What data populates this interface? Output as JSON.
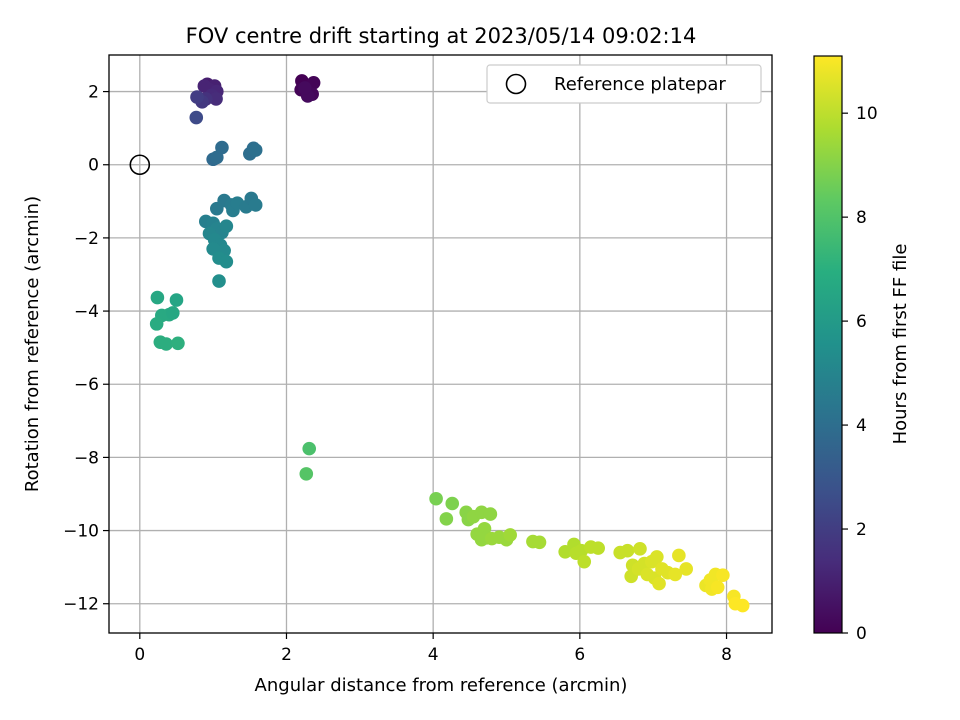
{
  "chart_data": {
    "type": "scatter",
    "title": "FOV centre drift starting at 2023/05/14 09:02:14",
    "xlabel": "Angular distance from reference (arcmin)",
    "ylabel": "Rotation from reference (arcmin)",
    "xlim": [
      -0.42,
      8.62
    ],
    "ylim": [
      -12.8,
      3.0
    ],
    "xticks": [
      0,
      2,
      4,
      6,
      8
    ],
    "yticks": [
      2,
      0,
      -2,
      -4,
      -6,
      -8,
      -10,
      -12
    ],
    "grid": true,
    "legend": {
      "position": "top-right",
      "entries": [
        "Reference platepar"
      ]
    },
    "reference_point": {
      "x": 0,
      "y": 0
    },
    "colorbar": {
      "label": "Hours from first FF file",
      "colormap": "viridis",
      "range": [
        0,
        11.1
      ],
      "ticks": [
        0,
        2,
        4,
        6,
        8,
        10
      ]
    },
    "points": [
      {
        "x": 2.21,
        "y": 2.29,
        "c": 0.0
      },
      {
        "x": 2.37,
        "y": 2.24,
        "c": 0.1
      },
      {
        "x": 2.2,
        "y": 2.05,
        "c": 0.1
      },
      {
        "x": 2.28,
        "y": 2.0,
        "c": 0.2
      },
      {
        "x": 2.35,
        "y": 1.93,
        "c": 0.2
      },
      {
        "x": 2.29,
        "y": 1.88,
        "c": 0.3
      },
      {
        "x": 2.25,
        "y": 2.1,
        "c": 0.3
      },
      {
        "x": 0.92,
        "y": 2.2,
        "c": 0.9
      },
      {
        "x": 1.02,
        "y": 2.15,
        "c": 1.0
      },
      {
        "x": 0.88,
        "y": 2.15,
        "c": 1.1
      },
      {
        "x": 0.95,
        "y": 2.05,
        "c": 1.1
      },
      {
        "x": 1.05,
        "y": 2.0,
        "c": 1.2
      },
      {
        "x": 0.98,
        "y": 1.9,
        "c": 1.3
      },
      {
        "x": 1.04,
        "y": 1.8,
        "c": 1.4
      },
      {
        "x": 0.9,
        "y": 1.8,
        "c": 1.6
      },
      {
        "x": 0.85,
        "y": 1.72,
        "c": 1.8
      },
      {
        "x": 0.78,
        "y": 1.85,
        "c": 2.0
      },
      {
        "x": 0.77,
        "y": 1.29,
        "c": 2.5
      },
      {
        "x": 1.0,
        "y": 0.15,
        "c": 3.8
      },
      {
        "x": 1.05,
        "y": 0.2,
        "c": 3.9
      },
      {
        "x": 1.12,
        "y": 0.47,
        "c": 3.9
      },
      {
        "x": 1.5,
        "y": 0.3,
        "c": 4.0
      },
      {
        "x": 1.55,
        "y": 0.45,
        "c": 4.0
      },
      {
        "x": 1.58,
        "y": 0.4,
        "c": 4.1
      },
      {
        "x": 1.05,
        "y": -1.2,
        "c": 4.5
      },
      {
        "x": 1.15,
        "y": -0.98,
        "c": 4.5
      },
      {
        "x": 1.25,
        "y": -1.1,
        "c": 4.6
      },
      {
        "x": 1.27,
        "y": -1.25,
        "c": 4.7
      },
      {
        "x": 1.33,
        "y": -1.05,
        "c": 4.7
      },
      {
        "x": 1.45,
        "y": -1.15,
        "c": 4.6
      },
      {
        "x": 1.52,
        "y": -0.92,
        "c": 4.5
      },
      {
        "x": 1.58,
        "y": -1.1,
        "c": 4.6
      },
      {
        "x": 0.9,
        "y": -1.55,
        "c": 4.8
      },
      {
        "x": 1.0,
        "y": -1.6,
        "c": 4.9
      },
      {
        "x": 1.05,
        "y": -1.75,
        "c": 5.0
      },
      {
        "x": 1.12,
        "y": -1.85,
        "c": 5.0
      },
      {
        "x": 1.18,
        "y": -1.68,
        "c": 5.1
      },
      {
        "x": 0.95,
        "y": -1.88,
        "c": 5.1
      },
      {
        "x": 1.02,
        "y": -2.05,
        "c": 5.2
      },
      {
        "x": 1.1,
        "y": -2.2,
        "c": 5.2
      },
      {
        "x": 1.15,
        "y": -2.35,
        "c": 5.3
      },
      {
        "x": 1.0,
        "y": -2.3,
        "c": 5.3
      },
      {
        "x": 1.08,
        "y": -2.55,
        "c": 5.4
      },
      {
        "x": 1.18,
        "y": -2.65,
        "c": 5.4
      },
      {
        "x": 1.08,
        "y": -3.18,
        "c": 5.5
      },
      {
        "x": 0.24,
        "y": -3.63,
        "c": 6.6
      },
      {
        "x": 0.5,
        "y": -3.7,
        "c": 6.5
      },
      {
        "x": 0.3,
        "y": -4.12,
        "c": 6.7
      },
      {
        "x": 0.4,
        "y": -4.1,
        "c": 6.7
      },
      {
        "x": 0.45,
        "y": -4.05,
        "c": 6.6
      },
      {
        "x": 0.23,
        "y": -4.35,
        "c": 6.8
      },
      {
        "x": 0.28,
        "y": -4.85,
        "c": 6.9
      },
      {
        "x": 0.36,
        "y": -4.9,
        "c": 6.9
      },
      {
        "x": 0.52,
        "y": -4.88,
        "c": 7.0
      },
      {
        "x": 2.31,
        "y": -7.76,
        "c": 7.9
      },
      {
        "x": 2.27,
        "y": -8.45,
        "c": 8.1
      },
      {
        "x": 4.04,
        "y": -9.13,
        "c": 8.8
      },
      {
        "x": 4.26,
        "y": -9.26,
        "c": 8.9
      },
      {
        "x": 4.18,
        "y": -9.68,
        "c": 9.0
      },
      {
        "x": 4.45,
        "y": -9.5,
        "c": 9.1
      },
      {
        "x": 4.48,
        "y": -9.7,
        "c": 9.1
      },
      {
        "x": 4.55,
        "y": -9.62,
        "c": 9.2
      },
      {
        "x": 4.66,
        "y": -9.5,
        "c": 9.2
      },
      {
        "x": 4.78,
        "y": -9.55,
        "c": 9.2
      },
      {
        "x": 4.6,
        "y": -10.1,
        "c": 9.3
      },
      {
        "x": 4.7,
        "y": -9.95,
        "c": 9.3
      },
      {
        "x": 4.72,
        "y": -10.2,
        "c": 9.3
      },
      {
        "x": 4.66,
        "y": -10.25,
        "c": 9.3
      },
      {
        "x": 4.8,
        "y": -10.22,
        "c": 9.4
      },
      {
        "x": 4.9,
        "y": -10.18,
        "c": 9.4
      },
      {
        "x": 5.0,
        "y": -10.25,
        "c": 9.4
      },
      {
        "x": 5.05,
        "y": -10.12,
        "c": 9.5
      },
      {
        "x": 5.36,
        "y": -10.3,
        "c": 9.6
      },
      {
        "x": 5.45,
        "y": -10.32,
        "c": 9.6
      },
      {
        "x": 5.8,
        "y": -10.58,
        "c": 9.8
      },
      {
        "x": 5.92,
        "y": -10.38,
        "c": 9.8
      },
      {
        "x": 5.95,
        "y": -10.62,
        "c": 9.9
      },
      {
        "x": 6.02,
        "y": -10.55,
        "c": 9.9
      },
      {
        "x": 6.06,
        "y": -10.85,
        "c": 10.0
      },
      {
        "x": 6.15,
        "y": -10.45,
        "c": 10.0
      },
      {
        "x": 6.25,
        "y": -10.48,
        "c": 10.0
      },
      {
        "x": 6.55,
        "y": -10.6,
        "c": 10.2
      },
      {
        "x": 6.65,
        "y": -10.55,
        "c": 10.2
      },
      {
        "x": 6.72,
        "y": -10.95,
        "c": 10.3
      },
      {
        "x": 6.7,
        "y": -11.25,
        "c": 10.3
      },
      {
        "x": 6.8,
        "y": -11.05,
        "c": 10.4
      },
      {
        "x": 6.82,
        "y": -10.5,
        "c": 10.3
      },
      {
        "x": 6.88,
        "y": -10.9,
        "c": 10.4
      },
      {
        "x": 6.92,
        "y": -11.2,
        "c": 10.5
      },
      {
        "x": 6.98,
        "y": -10.85,
        "c": 10.5
      },
      {
        "x": 7.02,
        "y": -11.3,
        "c": 10.5
      },
      {
        "x": 7.05,
        "y": -10.72,
        "c": 10.5
      },
      {
        "x": 7.08,
        "y": -11.45,
        "c": 10.6
      },
      {
        "x": 7.12,
        "y": -11.05,
        "c": 10.6
      },
      {
        "x": 7.2,
        "y": -11.15,
        "c": 10.6
      },
      {
        "x": 7.3,
        "y": -11.2,
        "c": 10.7
      },
      {
        "x": 7.35,
        "y": -10.68,
        "c": 10.7
      },
      {
        "x": 7.45,
        "y": -11.05,
        "c": 10.7
      },
      {
        "x": 7.72,
        "y": -11.5,
        "c": 10.8
      },
      {
        "x": 7.78,
        "y": -11.35,
        "c": 10.9
      },
      {
        "x": 7.8,
        "y": -11.6,
        "c": 10.9
      },
      {
        "x": 7.85,
        "y": -11.2,
        "c": 10.9
      },
      {
        "x": 7.88,
        "y": -11.55,
        "c": 11.0
      },
      {
        "x": 7.95,
        "y": -11.22,
        "c": 11.0
      },
      {
        "x": 8.1,
        "y": -11.8,
        "c": 11.0
      },
      {
        "x": 8.12,
        "y": -12.0,
        "c": 11.1
      },
      {
        "x": 8.22,
        "y": -12.05,
        "c": 11.1
      }
    ]
  }
}
